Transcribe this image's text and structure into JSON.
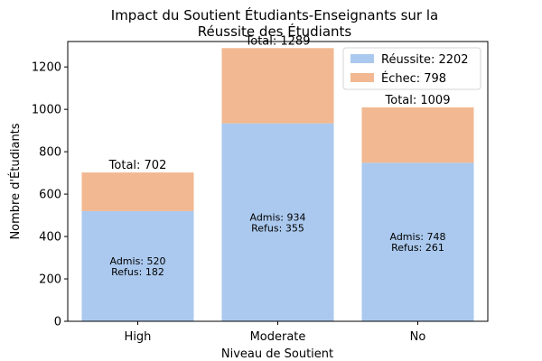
{
  "chart_data": {
    "type": "bar",
    "stacked": true,
    "title_lines": [
      "Impact du Soutient Étudiants-Enseignants sur la",
      "Réussite des Étudiants"
    ],
    "xlabel": "Niveau de Soutient",
    "ylabel": "Nombre d'Étudiants",
    "categories": [
      "High",
      "Moderate",
      "No"
    ],
    "ylim": [
      0,
      1320
    ],
    "yticks": [
      0,
      200,
      400,
      600,
      800,
      1000,
      1200
    ],
    "series": [
      {
        "name": "Réussite",
        "values": [
          520,
          934,
          748
        ],
        "color": "#abc9ee"
      },
      {
        "name": "Échec",
        "values": [
          182,
          355,
          261
        ],
        "color": "#f1b891"
      }
    ],
    "legend": {
      "position": "upper right",
      "entries": [
        "Réussite: 2202",
        "Échec: 798"
      ]
    },
    "total_labels": [
      "Total: 702",
      "Total: 1289",
      "Total: 1009"
    ],
    "inner_labels": [
      [
        "Admis: 520",
        "Refus: 182"
      ],
      [
        "Admis: 934",
        "Refus: 355"
      ],
      [
        "Admis: 748",
        "Refus: 261"
      ]
    ],
    "grid": false
  }
}
